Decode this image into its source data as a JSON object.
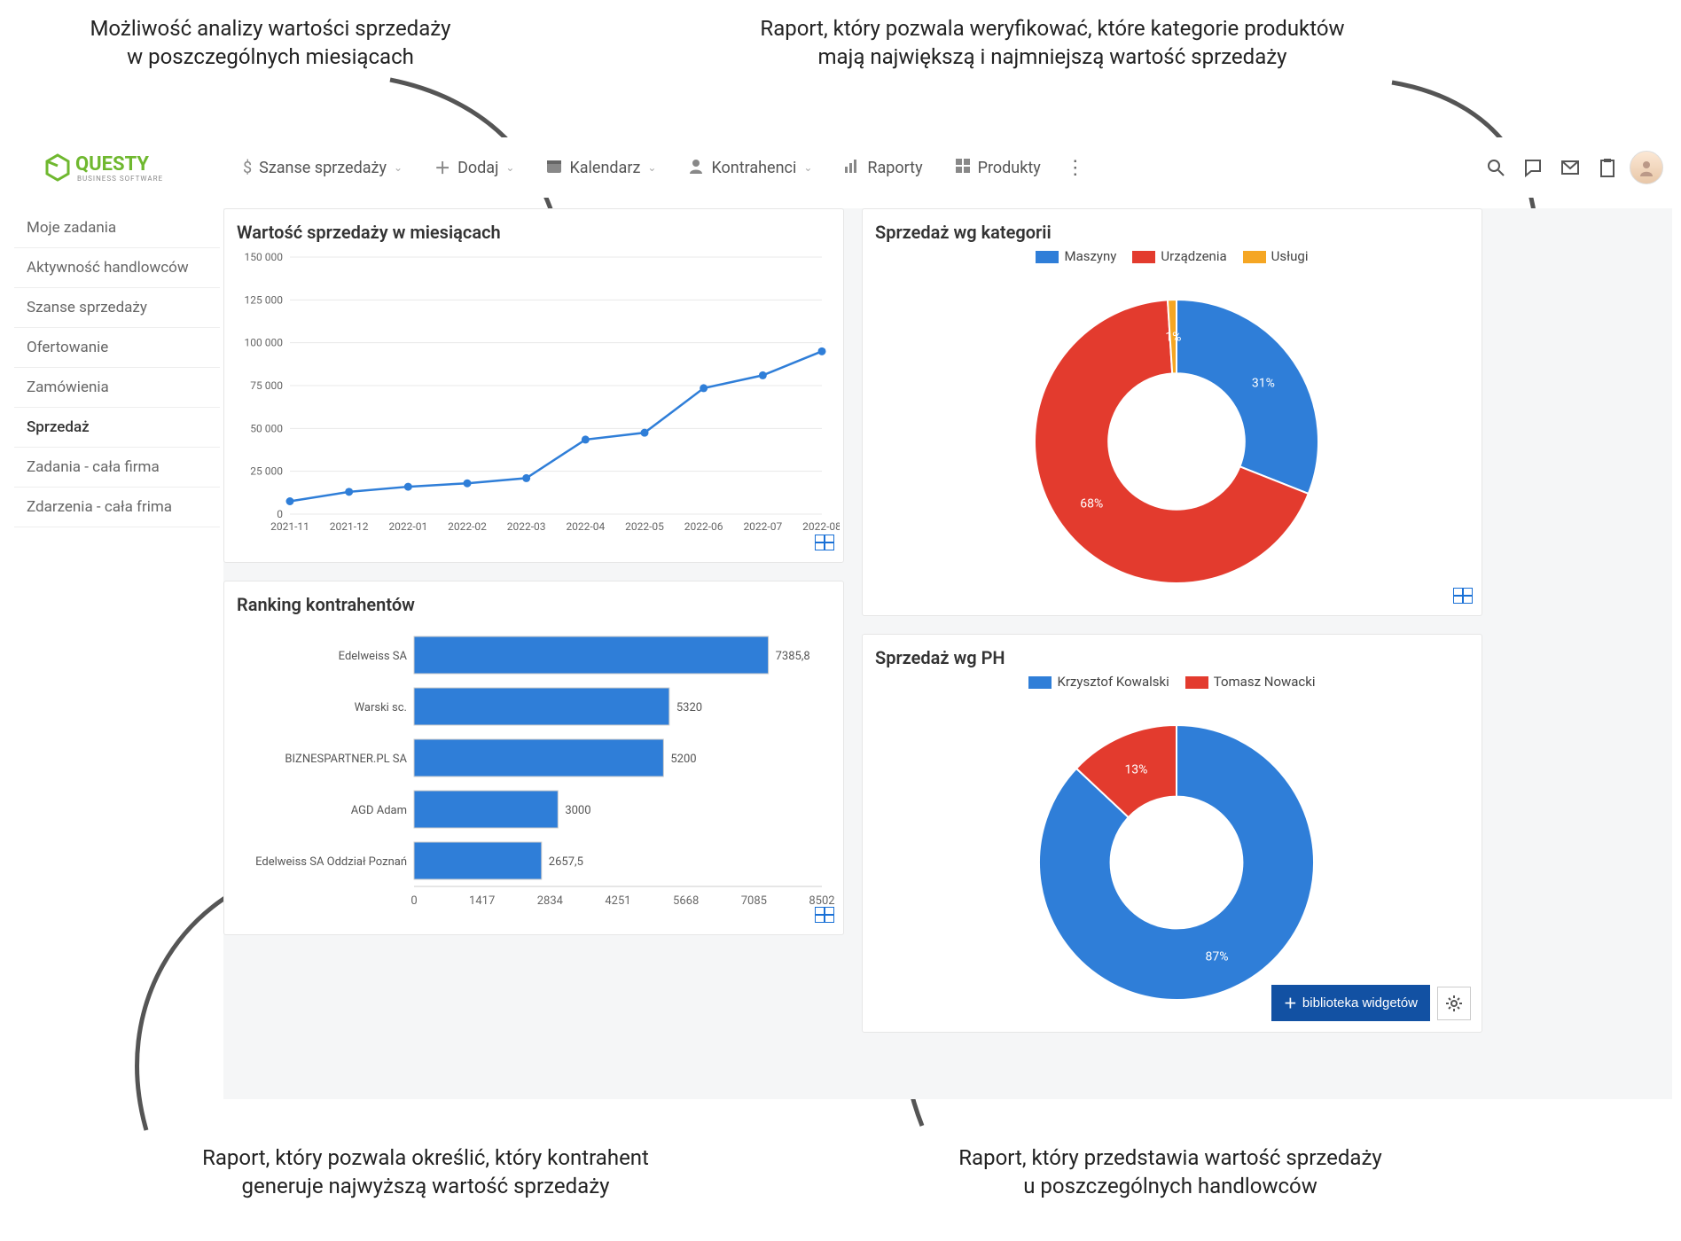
{
  "annotations": {
    "top_left": "Możliwość analizy wartości sprzedaży\nw poszczególnych miesiącach",
    "top_right": "Raport, który pozwala weryfikować, które kategorie produktów\nmają największą i najmniejszą wartość sprzedaży",
    "bottom_left": "Raport, który pozwala określić, który kontrahent\ngeneruje najwyższą wartość sprzedaży",
    "bottom_right": "Raport, który przedstawia wartość sprzedaży\nu poszczególnych handlowców"
  },
  "logo": {
    "text_main": "QUESTY",
    "text_sub": "BUSINESS SOFTWARE",
    "color": "#6fb82f"
  },
  "nav": {
    "items": [
      {
        "icon": "$",
        "label": "Szanse sprzedaży",
        "chevron": true
      },
      {
        "icon": "+",
        "label": "Dodaj",
        "chevron": true
      },
      {
        "icon": "calendar",
        "label": "Kalendarz",
        "chevron": true
      },
      {
        "icon": "person",
        "label": "Kontrahenci",
        "chevron": true
      },
      {
        "icon": "bars",
        "label": "Raporty",
        "chevron": false
      },
      {
        "icon": "grid",
        "label": "Produkty",
        "chevron": false
      }
    ],
    "right_icons": [
      "search",
      "chat",
      "mail",
      "clipboard"
    ]
  },
  "sidebar": {
    "items": [
      "Moje zadania",
      "Aktywność handlowców",
      "Szanse sprzedaży",
      "Ofertowanie",
      "Zamówienia",
      "Sprzedaż",
      "Zadania - cała firma",
      "Zdarzenia - cała frima"
    ],
    "active_index": 5
  },
  "charts": {
    "line": {
      "title": "Wartość sprzedaży w miesiącach",
      "categories": [
        "2021-11",
        "2021-12",
        "2022-01",
        "2022-02",
        "2022-03",
        "2022-04",
        "2022-05",
        "2022-06",
        "2022-07",
        "2022-08"
      ],
      "values": [
        7500,
        13000,
        16000,
        18000,
        21000,
        43500,
        47500,
        73500,
        81000,
        95000
      ],
      "ylim": [
        0,
        150000
      ],
      "ytick_step": 25000,
      "line_color": "#2f7ed8",
      "marker_color": "#2f7ed8",
      "grid_color": "#e8e8e8",
      "axis_color": "#999",
      "label_fontsize": 12
    },
    "hbar": {
      "title": "Ranking kontrahentów",
      "labels": [
        "Edelweiss SA",
        "Warski sc.",
        "BIZNESPARTNER.PL SA",
        "AGD Adam",
        "Edelweiss SA Oddział Poznań"
      ],
      "values": [
        7385.8,
        5320,
        5200,
        3000,
        2657.5
      ],
      "value_labels": [
        "7385,8",
        "5320",
        "5200",
        "3000",
        "2657,5"
      ],
      "xlim": [
        0,
        8502
      ],
      "xticks": [
        0,
        1417,
        2834,
        4251,
        5668,
        7085,
        8502
      ],
      "bar_color": "#2f7ed8",
      "border_color": "#ccc",
      "label_fontsize": 13
    },
    "donut1": {
      "title": "Sprzedaż wg kategorii",
      "legend": [
        "Maszyny",
        "Urządzenia",
        "Usługi"
      ],
      "colors": [
        "#2f7ed8",
        "#e33b2e",
        "#f5a623"
      ],
      "values": [
        31,
        68,
        1
      ],
      "labels": [
        "31%",
        "68%",
        "1%"
      ],
      "inner_ratio": 0.48,
      "label_color_on_slice": "#ffffff"
    },
    "donut2": {
      "title": "Sprzedaż wg PH",
      "legend": [
        "Krzysztof Kowalski",
        "Tomasz Nowacki"
      ],
      "colors": [
        "#2f7ed8",
        "#e33b2e"
      ],
      "values": [
        87,
        13
      ],
      "labels": [
        "87%",
        "13%"
      ],
      "inner_ratio": 0.48,
      "label_color_on_slice": "#ffffff"
    }
  },
  "widget_button": "biblioteka widgetów"
}
